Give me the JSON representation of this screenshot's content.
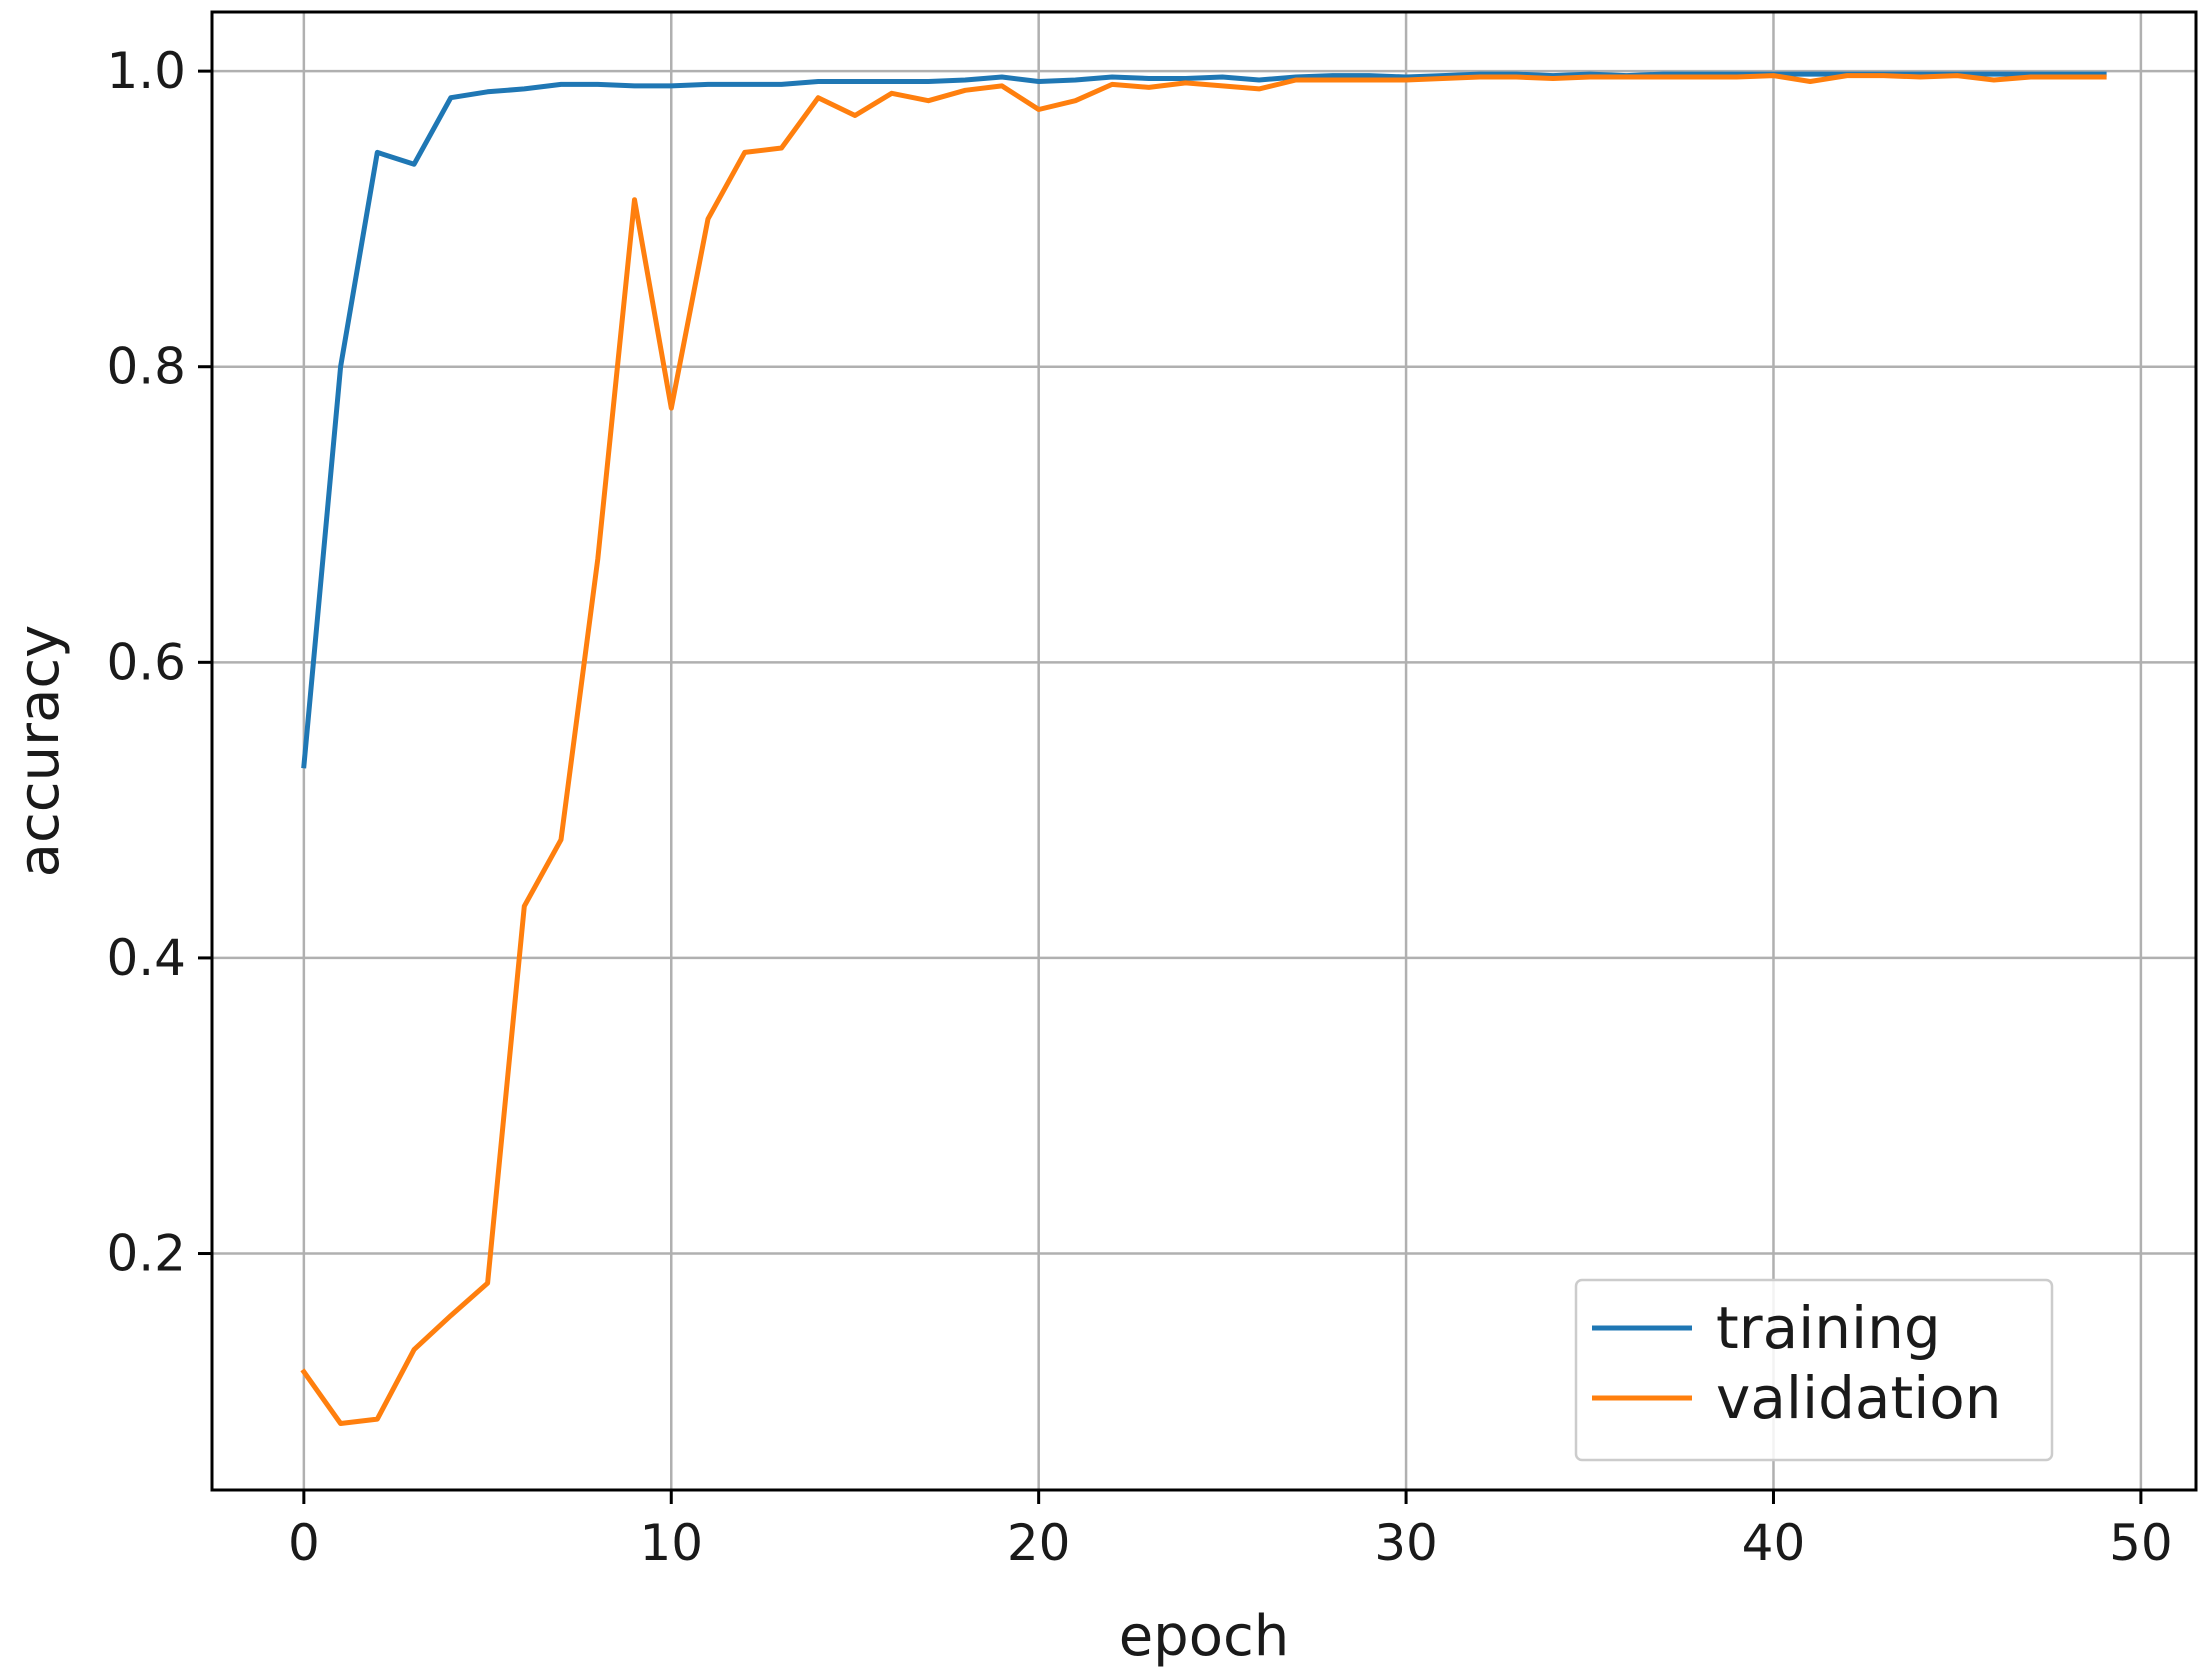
{
  "chart_data": {
    "type": "line",
    "title": "",
    "xlabel": "epoch",
    "ylabel": "accuracy",
    "xlim": [
      -2.5,
      51.5
    ],
    "ylim": [
      0.04,
      1.04
    ],
    "x_ticks": [
      0,
      10,
      20,
      30,
      40,
      50
    ],
    "y_ticks": [
      0.2,
      0.4,
      0.6,
      0.8,
      1.0
    ],
    "x_tick_labels": [
      "0",
      "10",
      "20",
      "30",
      "40",
      "50"
    ],
    "y_tick_labels": [
      "0.2",
      "0.4",
      "0.6",
      "0.8",
      "1.0"
    ],
    "grid": true,
    "legend_position": "lower-right",
    "x": [
      0,
      1,
      2,
      3,
      4,
      5,
      6,
      7,
      8,
      9,
      10,
      11,
      12,
      13,
      14,
      15,
      16,
      17,
      18,
      19,
      20,
      21,
      22,
      23,
      24,
      25,
      26,
      27,
      28,
      29,
      30,
      31,
      32,
      33,
      34,
      35,
      36,
      37,
      38,
      39,
      40,
      41,
      42,
      43,
      44,
      45,
      46,
      47,
      48,
      49
    ],
    "series": [
      {
        "name": "training",
        "color": "#1f77b4",
        "values": [
          0.53,
          0.8,
          0.945,
          0.937,
          0.982,
          0.986,
          0.988,
          0.991,
          0.991,
          0.99,
          0.99,
          0.991,
          0.991,
          0.991,
          0.993,
          0.993,
          0.993,
          0.993,
          0.994,
          0.996,
          0.993,
          0.994,
          0.996,
          0.995,
          0.995,
          0.996,
          0.994,
          0.996,
          0.997,
          0.997,
          0.996,
          0.997,
          0.998,
          0.998,
          0.997,
          0.998,
          0.997,
          0.998,
          0.998,
          0.998,
          0.998,
          0.998,
          0.998,
          0.998,
          0.998,
          0.998,
          0.998,
          0.998,
          0.998,
          0.998
        ]
      },
      {
        "name": "validation",
        "color": "#ff7f0e",
        "values": [
          0.12,
          0.085,
          0.088,
          0.135,
          0.158,
          0.18,
          0.435,
          0.48,
          0.67,
          0.913,
          0.772,
          0.9,
          0.945,
          0.948,
          0.982,
          0.97,
          0.985,
          0.98,
          0.987,
          0.99,
          0.974,
          0.98,
          0.991,
          0.989,
          0.992,
          0.99,
          0.988,
          0.994,
          0.994,
          0.994,
          0.994,
          0.995,
          0.996,
          0.996,
          0.995,
          0.996,
          0.996,
          0.996,
          0.996,
          0.996,
          0.997,
          0.993,
          0.997,
          0.997,
          0.996,
          0.997,
          0.994,
          0.996,
          0.996,
          0.996
        ]
      }
    ]
  }
}
